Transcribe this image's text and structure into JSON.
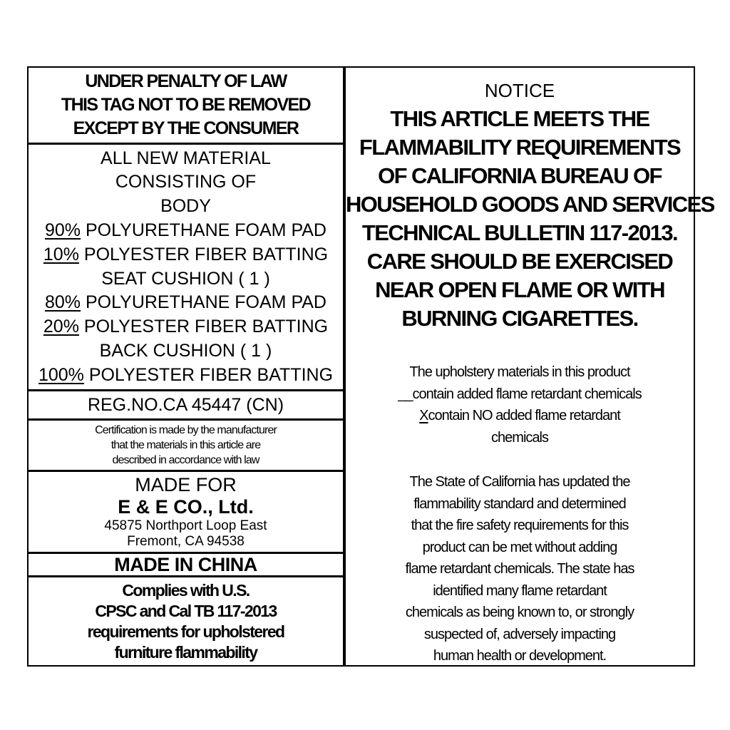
{
  "left": {
    "penalty": [
      "UNDER PENALTY OF LAW",
      "THIS TAG NOT TO BE REMOVED",
      "EXCEPT BY THE CONSUMER"
    ],
    "material_header": [
      "ALL NEW MATERIAL",
      "CONSISTING OF",
      "BODY"
    ],
    "body": [
      {
        "pct": "90%",
        "text": " POLYURETHANE FOAM PAD"
      },
      {
        "pct": "10%",
        "text": " POLYESTER FIBER BATTING"
      }
    ],
    "seat_label": "SEAT CUSHION ( 1 )",
    "seat": [
      {
        "pct": "80%",
        "text": " POLYURETHANE FOAM PAD"
      },
      {
        "pct": "20%",
        "text": " POLYESTER FIBER BATTING"
      }
    ],
    "back_label": "BACK CUSHION ( 1 )",
    "back": [
      {
        "pct": "100%",
        "text": " POLYESTER FIBER BATTING"
      }
    ],
    "reg_no": "REG.NO.CA 45447 (CN)",
    "certification": [
      "Certification is made by the manufacturer",
      "that the materials in this article are",
      "described in accordance with law"
    ],
    "made_for": "MADE FOR",
    "company": "E & E CO., Ltd.",
    "address": [
      "45875 Northport Loop East",
      "Fremont, CA 94538"
    ],
    "origin": "MADE IN CHINA",
    "complies": [
      "Complies with U.S.",
      "CPSC and Cal TB 117-2013",
      "requirements for upholstered",
      "furniture flammability"
    ]
  },
  "right": {
    "notice": "NOTICE",
    "statement": [
      "THIS ARTICLE MEETS THE",
      "FLAMMABILITY REQUIREMENTS",
      "OF CALIFORNIA BUREAU OF",
      "HOUSEHOLD GOODS AND SERVICES",
      "TECHNICAL BULLETIN 117-2013.",
      "CARE SHOULD BE EXERCISED",
      "NEAR OPEN FLAME OR WITH",
      "BURNING CIGARETTES."
    ],
    "disclosure_intro": "The upholstery materials in this product",
    "option1_mark": "__",
    "option1": "contain added flame retardant chemicals",
    "option2_mark": "X",
    "option2": "contain NO added flame retardant",
    "option2_cont": "chemicals",
    "state_text": [
      "The State of California has updated the",
      "flammability  standard and determined",
      "that the fire safety requirements for this",
      "product can be met without adding",
      "flame retardant chemicals. The state has",
      "identified many flame retardant",
      "chemicals as being known to, or strongly",
      "suspected of, adversely impacting",
      "human health or development."
    ]
  }
}
